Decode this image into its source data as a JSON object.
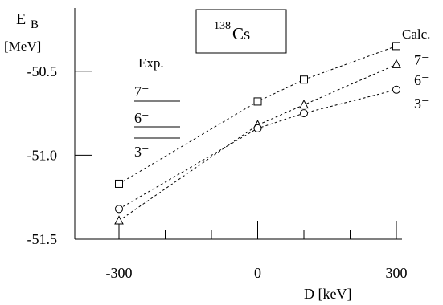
{
  "chart_data": {
    "type": "line",
    "xlabel": "D [keV]",
    "ylabel_main": "E",
    "ylabel_sub": "B",
    "ylabel_unit": "[MeV]",
    "xlim": [
      -300,
      300
    ],
    "ylim": [
      -51.5,
      -50.2
    ],
    "xticks_major": [
      -300,
      0,
      300
    ],
    "xticks_minor": [
      -200,
      -100,
      100,
      200
    ],
    "yticks": [
      -51.5,
      -51.0,
      -50.5
    ],
    "ytick_labels": [
      "-51.5",
      "-51.0",
      "-50.5"
    ],
    "xtick_labels": [
      "-300",
      "0",
      "300"
    ],
    "nucleus_box": {
      "mass": "138",
      "element": "Cs"
    },
    "calc_label": "Calc.",
    "exp_label": "Exp.",
    "exp_levels": [
      {
        "label": "7⁻"
      },
      {
        "label": "6⁻"
      },
      {
        "label": "3⁻"
      }
    ],
    "series": [
      {
        "name": "7⁻",
        "marker": "square",
        "x": [
          -300,
          0,
          100,
          300
        ],
        "y": [
          -51.17,
          -50.68,
          -50.55,
          -50.35
        ]
      },
      {
        "name": "6⁻",
        "marker": "triangle",
        "x": [
          -300,
          0,
          100,
          300
        ],
        "y": [
          -51.39,
          -50.82,
          -50.7,
          -50.46
        ]
      },
      {
        "name": "3⁻",
        "marker": "circle",
        "x": [
          -300,
          0,
          100,
          300
        ],
        "y": [
          -51.32,
          -50.84,
          -50.75,
          -50.61
        ]
      }
    ]
  }
}
